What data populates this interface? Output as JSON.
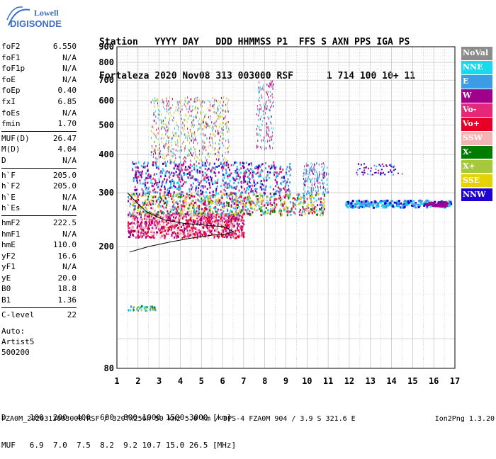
{
  "logo": {
    "top": "Lowell",
    "bottom": "DIGISONDE"
  },
  "header": {
    "line1": "Station   YYYY DAY   DDD HHMMSS P1  FFS S AXN PPS IGA PS",
    "line2": "Fortaleza 2020 Nov08 313 003000 RSF      1 714 100 10+ 11"
  },
  "params": {
    "groups": [
      [
        [
          "foF2",
          "6.550"
        ],
        [
          "foF1",
          "N/A"
        ],
        [
          "foF1p",
          "N/A"
        ],
        [
          "foE",
          "N/A"
        ],
        [
          "foEp",
          "0.40"
        ],
        [
          "fxI",
          "6.85"
        ],
        [
          "foEs",
          "N/A"
        ],
        [
          "fmin",
          "1.70"
        ]
      ],
      [
        [
          "MUF(D)",
          "26.47"
        ],
        [
          "M(D)",
          "4.04"
        ],
        [
          "D",
          "N/A"
        ]
      ],
      [
        [
          "h`F",
          "205.0"
        ],
        [
          "h`F2",
          "205.0"
        ],
        [
          "h`E",
          "N/A"
        ],
        [
          "h`Es",
          "N/A"
        ]
      ],
      [
        [
          "hmF2",
          "222.5"
        ],
        [
          "hmF1",
          "N/A"
        ],
        [
          "hmE",
          "110.0"
        ],
        [
          "yF2",
          "16.6"
        ],
        [
          "yF1",
          "N/A"
        ],
        [
          "yE",
          "20.0"
        ],
        [
          "B0",
          "18.8"
        ],
        [
          "B1",
          "1.36"
        ]
      ],
      [
        [
          "C-level",
          "22"
        ]
      ]
    ]
  },
  "auto": {
    "line1": "Auto:",
    "line2": "Artist5",
    "line3": "500200"
  },
  "legend": [
    {
      "label": "NoVal",
      "color": "#8c8c8c"
    },
    {
      "label": "NNE",
      "color": "#19d9f0"
    },
    {
      "label": "E",
      "color": "#3c9de6"
    },
    {
      "label": "W",
      "color": "#a0008c"
    },
    {
      "label": "Vo-",
      "color": "#e6287a"
    },
    {
      "label": "Vo+",
      "color": "#e60028"
    },
    {
      "label": "SSW",
      "color": "#f5b4b4"
    },
    {
      "label": "X-",
      "color": "#007d00"
    },
    {
      "label": "X+",
      "color": "#a5c83c"
    },
    {
      "label": "SSE",
      "color": "#e6d200"
    },
    {
      "label": "NNW",
      "color": "#1e00d2"
    }
  ],
  "chart_data": {
    "type": "scatter",
    "xlim": [
      1,
      17
    ],
    "x_ticks": [
      "1",
      "2",
      "3",
      "4",
      "5",
      "6",
      "7",
      "8",
      "9",
      "10",
      "11",
      "12",
      "13",
      "14",
      "15",
      "16",
      "17"
    ],
    "y_ticks": [
      "80",
      "200",
      "300",
      "400",
      "500",
      "600",
      "700",
      "800",
      "900"
    ],
    "y_scale": "log",
    "ylim": [
      80,
      900
    ],
    "grid": true,
    "trace_curve": [
      [
        1.6,
        192
      ],
      [
        2.5,
        200
      ],
      [
        3.5,
        207
      ],
      [
        4.5,
        213
      ],
      [
        5.5,
        218
      ],
      [
        6.2,
        220
      ],
      [
        6.5,
        224
      ],
      [
        6.1,
        232
      ],
      [
        5.2,
        235
      ],
      [
        4.2,
        238
      ],
      [
        3.2,
        245
      ],
      [
        2.4,
        260
      ],
      [
        1.9,
        280
      ],
      [
        1.5,
        300
      ]
    ]
  },
  "footer": {
    "row1": "D     100  200  400  600  800 1000 1500 3000 [km]",
    "row2": "MUF   6.9  7.0  7.5  8.2  9.2 10.7 15.0 26.5 [MHz]",
    "left": "FZA0M_2020313003000.RSF / 320fx256h 50 kHz 5.0 km / DPS-4 FZA0M 904 / 3.9 S 321.6 E",
    "right": "Ion2Png 1.3.20"
  }
}
